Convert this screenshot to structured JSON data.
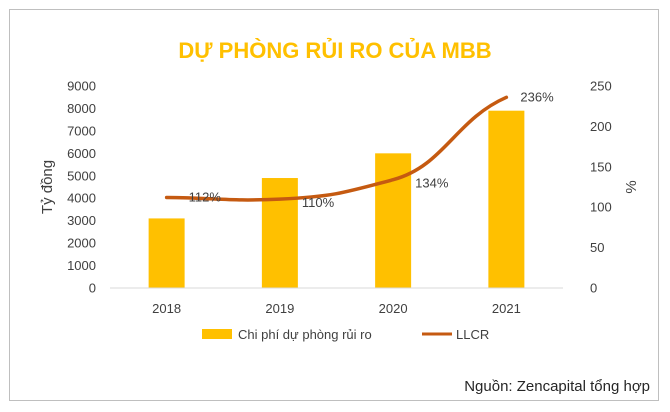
{
  "chart_data": {
    "type": "bar+line",
    "title": "DỰ PHÒNG RỦI RO CỦA MBB",
    "categories": [
      "2018",
      "2019",
      "2020",
      "2021"
    ],
    "series": [
      {
        "name": "Chi phí dự phòng rủi ro",
        "type": "bar",
        "axis": "left",
        "values": [
          3100,
          4900,
          6000,
          7900
        ]
      },
      {
        "name": "LLCR",
        "type": "line",
        "axis": "right",
        "values": [
          112,
          110,
          134,
          236
        ],
        "labels": [
          "112%",
          "110%",
          "134%",
          "236%"
        ]
      }
    ],
    "ylabel": "Tỷ đồng",
    "ylabel_right": "%",
    "ylim": [
      0,
      9000
    ],
    "yticks": [
      0,
      1000,
      2000,
      3000,
      4000,
      5000,
      6000,
      7000,
      8000,
      9000
    ],
    "ylim_right": [
      0,
      250
    ],
    "yticks_right": [
      0,
      50,
      100,
      150,
      200,
      250
    ],
    "legend_position": "bottom",
    "grid": false,
    "colors": {
      "bar": "#FFC000",
      "line": "#C55A11",
      "title": "#FFC000"
    }
  },
  "source_note": "Nguồn:  Zencapital tổng hợp"
}
